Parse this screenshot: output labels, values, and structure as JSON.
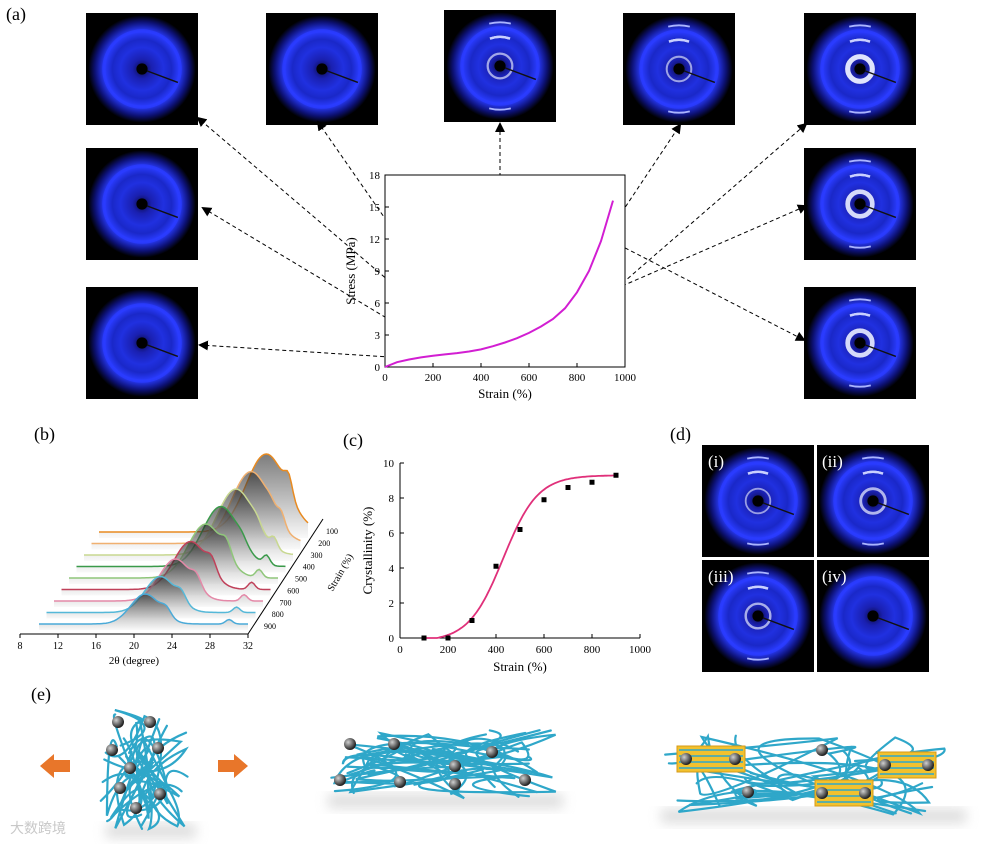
{
  "panels": {
    "a": "(a)",
    "b": "(b)",
    "c": "(c)",
    "d": "(d)",
    "e": "(e)"
  },
  "panel_d_labels": [
    "(i)",
    "(ii)",
    "(iii)",
    "(iv)"
  ],
  "colors": {
    "stress_curve": "#d21ed2",
    "fit_curve": "#e0307a",
    "xrd_ring": "#2a3cff",
    "chain": "#2fa7c9",
    "crystal": "#f2c12e",
    "arrow": "#e8762a"
  },
  "watermark": "大数跨境",
  "chart_data": [
    {
      "id": "a",
      "type": "line",
      "xlabel": "Strain (%)",
      "ylabel": "Stress (MPa)",
      "xlim": [
        0,
        1000
      ],
      "ylim": [
        0,
        18
      ],
      "xticks": [
        0,
        200,
        400,
        600,
        800,
        1000
      ],
      "yticks": [
        0,
        3,
        6,
        9,
        12,
        15,
        18
      ],
      "series": [
        {
          "x": [
            0,
            50,
            100,
            150,
            200,
            250,
            300,
            350,
            400,
            450,
            500,
            550,
            600,
            650,
            700,
            750,
            800,
            850,
            900,
            950
          ],
          "y": [
            0,
            0.45,
            0.7,
            0.9,
            1.05,
            1.18,
            1.3,
            1.45,
            1.65,
            1.95,
            2.3,
            2.7,
            3.2,
            3.8,
            4.5,
            5.5,
            7.0,
            9.0,
            11.8,
            15.6
          ]
        }
      ]
    },
    {
      "id": "b",
      "type": "area",
      "xlabel": "2θ (degree)",
      "zlabel": "Strain (%)",
      "xticks": [
        8,
        12,
        16,
        20,
        24,
        28,
        32
      ],
      "zticks": [
        100,
        200,
        300,
        400,
        500,
        600,
        700,
        800,
        900
      ]
    },
    {
      "id": "c",
      "type": "scatter",
      "xlabel": "Strain (%)",
      "ylabel": "Crystallinity (%)",
      "xlim": [
        0,
        1000
      ],
      "ylim": [
        0,
        10
      ],
      "xticks": [
        0,
        200,
        400,
        600,
        800,
        1000
      ],
      "yticks": [
        0,
        2,
        4,
        6,
        8,
        10
      ],
      "series": [
        {
          "x": [
            100,
            200,
            300,
            400,
            500,
            600,
            700,
            800,
            900
          ],
          "y": [
            0,
            0,
            1.0,
            4.1,
            6.2,
            7.9,
            8.6,
            8.9,
            9.3
          ]
        }
      ]
    }
  ]
}
